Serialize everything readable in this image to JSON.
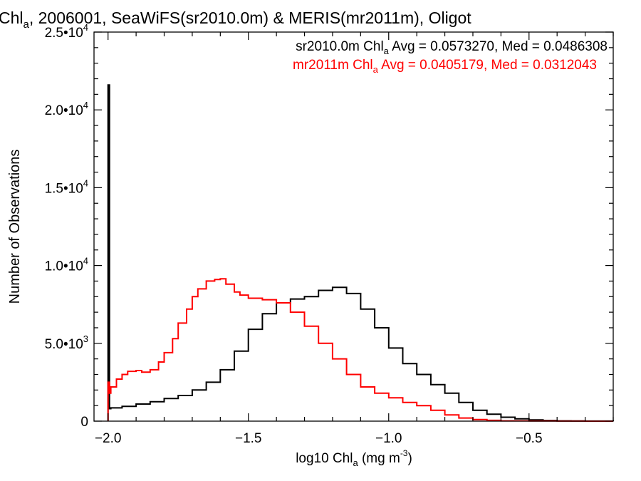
{
  "chart_data": {
    "type": "line",
    "style": "step-histogram",
    "title": {
      "pre": "Chl",
      "sub": "a",
      "post": ", 2006001, SeaWiFS(sr2010.0m) & MERIS(mr2011m), Oligot"
    },
    "xlabel": {
      "pre": "log10 Chl",
      "sub": "a",
      "mid": " (mg m",
      "sup": "-3",
      "post": ")"
    },
    "ylabel": "Number of Observations",
    "xlim": [
      -2.05,
      -0.2
    ],
    "ylim": [
      0,
      25000
    ],
    "grid": false,
    "legend_position": "top-right",
    "x_ticks": [
      {
        "value": -2.0,
        "label": "−2.0"
      },
      {
        "value": -1.5,
        "label": "−1.5"
      },
      {
        "value": -1.0,
        "label": "−1.0"
      },
      {
        "value": -0.5,
        "label": "−0.5"
      }
    ],
    "y_ticks": [
      {
        "value": 0,
        "mant": "0",
        "exp": ""
      },
      {
        "value": 5000,
        "mant": "5.0•10",
        "exp": "3"
      },
      {
        "value": 10000,
        "mant": "1.0•10",
        "exp": "4"
      },
      {
        "value": 15000,
        "mant": "1.5•10",
        "exp": "4"
      },
      {
        "value": 20000,
        "mant": "2.0•10",
        "exp": "4"
      },
      {
        "value": 25000,
        "mant": "2.5•10",
        "exp": "4"
      }
    ],
    "annotations": [
      {
        "pre": "sr2010.0m Chl",
        "sub": "a",
        "post": " Avg = 0.0573270, Med = 0.0486308",
        "color": "#000000"
      },
      {
        "pre": "mr2011m Chl",
        "sub": "a",
        "post": " Avg = 0.0405179, Med = 0.0312043",
        "color": "#ff0000"
      }
    ],
    "series": [
      {
        "color": "#000000",
        "x": [
          -2.0,
          -1.995,
          -1.99,
          -1.95,
          -1.9,
          -1.85,
          -1.8,
          -1.75,
          -1.7,
          -1.65,
          -1.6,
          -1.55,
          -1.5,
          -1.45,
          -1.4,
          -1.35,
          -1.3,
          -1.25,
          -1.2,
          -1.15,
          -1.1,
          -1.05,
          -1.0,
          -0.95,
          -0.9,
          -0.85,
          -0.8,
          -0.75,
          -0.7,
          -0.65,
          -0.6,
          -0.55,
          -0.5,
          -0.45,
          -0.4,
          -0.35,
          -0.3,
          -0.2
        ],
        "y": [
          21600,
          800,
          850,
          950,
          1100,
          1250,
          1450,
          1650,
          2000,
          2500,
          3300,
          4500,
          5900,
          6900,
          7600,
          7850,
          8000,
          8400,
          8600,
          8200,
          7200,
          6000,
          4700,
          3700,
          3000,
          2350,
          1800,
          1200,
          700,
          450,
          250,
          150,
          80,
          40,
          20,
          10,
          5,
          0
        ]
      },
      {
        "color": "#ff0000",
        "x": [
          -2.0,
          -1.995,
          -1.99,
          -1.97,
          -1.95,
          -1.93,
          -1.9,
          -1.88,
          -1.85,
          -1.82,
          -1.8,
          -1.77,
          -1.75,
          -1.72,
          -1.7,
          -1.68,
          -1.65,
          -1.62,
          -1.6,
          -1.58,
          -1.55,
          -1.53,
          -1.5,
          -1.45,
          -1.4,
          -1.35,
          -1.3,
          -1.25,
          -1.2,
          -1.15,
          -1.1,
          -1.05,
          -1.0,
          -0.95,
          -0.9,
          -0.85,
          -0.8,
          -0.75,
          -0.7,
          -0.65,
          -0.6,
          -0.5,
          -0.4,
          -0.3,
          -0.2
        ],
        "y": [
          2500,
          1800,
          2200,
          2700,
          3000,
          3200,
          3250,
          3150,
          3300,
          3800,
          4400,
          5300,
          6300,
          7200,
          8000,
          8500,
          9000,
          9100,
          9150,
          8800,
          8300,
          8100,
          7900,
          7800,
          7600,
          7000,
          6100,
          5000,
          4000,
          3000,
          2200,
          1800,
          1500,
          1200,
          1000,
          700,
          400,
          200,
          100,
          50,
          20,
          10,
          5,
          2,
          0
        ]
      }
    ]
  }
}
